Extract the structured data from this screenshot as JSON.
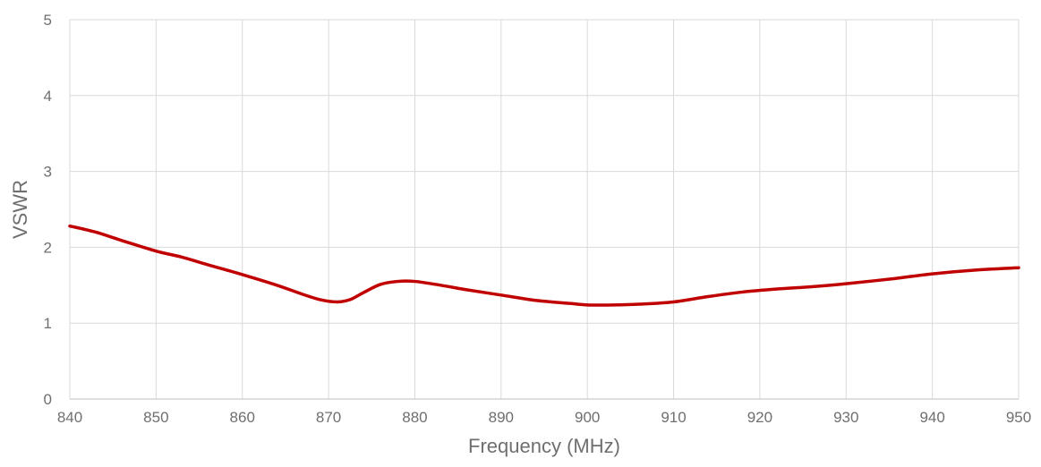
{
  "chart_data": {
    "type": "line",
    "title": "",
    "xlabel": "Frequency (MHz)",
    "ylabel": "VSWR",
    "xlim": [
      840,
      950
    ],
    "ylim": [
      0,
      5
    ],
    "xticks": [
      840,
      850,
      860,
      870,
      880,
      890,
      900,
      910,
      920,
      930,
      940,
      950
    ],
    "yticks": [
      0,
      1,
      2,
      3,
      4,
      5
    ],
    "grid": true,
    "legend": "none",
    "series": [
      {
        "color": "#c00000",
        "x": [
          840,
          843,
          846,
          850,
          853,
          856,
          860,
          864,
          867,
          869,
          871,
          872.5,
          874,
          876,
          878,
          880,
          883,
          886,
          890,
          894,
          898,
          900,
          903,
          906,
          910,
          914,
          918,
          922,
          926,
          930,
          935,
          940,
          945,
          950
        ],
        "y": [
          2.28,
          2.2,
          2.09,
          1.95,
          1.87,
          1.77,
          1.64,
          1.5,
          1.38,
          1.31,
          1.28,
          1.31,
          1.4,
          1.51,
          1.55,
          1.55,
          1.5,
          1.44,
          1.37,
          1.3,
          1.26,
          1.24,
          1.24,
          1.25,
          1.28,
          1.35,
          1.41,
          1.45,
          1.48,
          1.52,
          1.58,
          1.65,
          1.7,
          1.73
        ]
      }
    ]
  }
}
